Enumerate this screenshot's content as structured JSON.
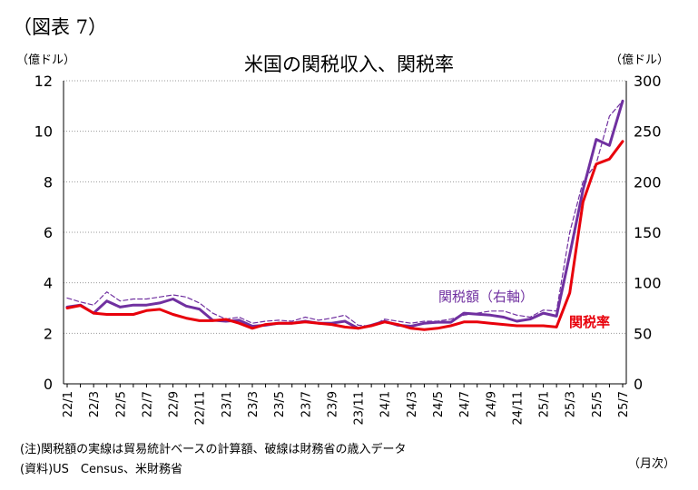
{
  "figure_label": "（図表 7）",
  "notes": {
    "note": "(注)関税額の実線は貿易統計ベースの計算額、破線は財務省の歳入データ",
    "source": "(資料)US　Census、米財務省"
  },
  "chart_data": {
    "type": "line",
    "title": "米国の関税収入、関税率",
    "left_axis_unit": "（億ドル）",
    "right_axis_unit": "（億ドル）",
    "x_unit": "（月次）",
    "left_ylim": [
      0,
      12
    ],
    "left_ticks": [
      "0",
      "2",
      "4",
      "6",
      "8",
      "10",
      "12"
    ],
    "right_ylim": [
      0,
      300
    ],
    "right_ticks": [
      "0",
      "50",
      "100",
      "150",
      "200",
      "250",
      "300"
    ],
    "grid": "horizontal dotted",
    "x": [
      "22/1",
      "22/2",
      "22/3",
      "22/4",
      "22/5",
      "22/6",
      "22/7",
      "22/8",
      "22/9",
      "22/10",
      "22/11",
      "22/12",
      "23/1",
      "23/2",
      "23/3",
      "23/4",
      "23/5",
      "23/6",
      "23/7",
      "23/8",
      "23/9",
      "23/10",
      "23/11",
      "23/12",
      "24/1",
      "24/2",
      "24/3",
      "24/4",
      "24/5",
      "24/6",
      "24/7",
      "24/8",
      "24/9",
      "24/10",
      "24/11",
      "24/12",
      "25/1",
      "25/2",
      "25/3",
      "25/4",
      "25/5",
      "25/6",
      "25/7"
    ],
    "x_tick_labels": [
      "22/1",
      "22/3",
      "22/5",
      "22/7",
      "22/9",
      "22/11",
      "23/1",
      "23/3",
      "23/5",
      "23/7",
      "23/9",
      "23/11",
      "24/1",
      "24/3",
      "24/5",
      "24/7",
      "24/9",
      "24/11",
      "25/1",
      "25/3",
      "25/5",
      "25/7"
    ],
    "series": [
      {
        "name": "関税額(右軸)",
        "axis": "right",
        "color": "#7030A0",
        "style": "solid",
        "values": [
          76,
          78,
          70,
          82,
          76,
          78,
          78,
          80,
          84,
          77,
          74,
          63,
          62,
          63,
          57,
          58,
          60,
          60,
          62,
          60,
          60,
          62,
          55,
          58,
          62,
          58,
          57,
          60,
          61,
          61,
          70,
          69,
          68,
          66,
          62,
          64,
          70,
          67,
          128,
          192,
          242,
          236,
          280
        ]
      },
      {
        "name": "関税額(財務省歳入)",
        "axis": "right",
        "color": "#7030A0",
        "style": "dashed",
        "values": [
          85,
          81,
          78,
          91,
          82,
          84,
          84,
          86,
          88,
          86,
          80,
          70,
          64,
          66,
          60,
          62,
          63,
          62,
          66,
          63,
          65,
          68,
          58,
          57,
          64,
          62,
          60,
          62,
          62,
          64,
          68,
          70,
          72,
          72,
          68,
          66,
          73,
          72,
          150,
          200,
          218,
          265,
          280
        ]
      },
      {
        "name": "関税率",
        "axis": "left",
        "color": "#E8000B",
        "style": "solid",
        "values": [
          3.0,
          3.1,
          2.8,
          2.75,
          2.75,
          2.75,
          2.9,
          2.95,
          2.75,
          2.6,
          2.5,
          2.5,
          2.55,
          2.4,
          2.2,
          2.35,
          2.4,
          2.4,
          2.45,
          2.4,
          2.35,
          2.25,
          2.2,
          2.3,
          2.45,
          2.35,
          2.2,
          2.15,
          2.2,
          2.3,
          2.45,
          2.45,
          2.4,
          2.35,
          2.3,
          2.3,
          2.3,
          2.25,
          3.6,
          7.2,
          8.7,
          8.9,
          9.6
        ]
      }
    ],
    "annotations": [
      {
        "text": "関税額（右軸）",
        "color": "#7030A0"
      },
      {
        "text": "関税率",
        "color": "#E8000B"
      }
    ]
  }
}
